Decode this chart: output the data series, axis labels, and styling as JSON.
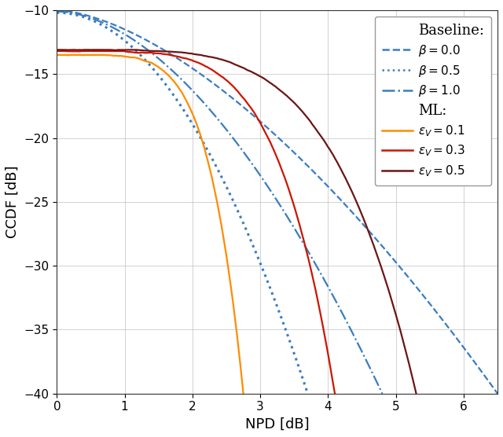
{
  "title": "",
  "xlabel": "NPD [dB]",
  "ylabel": "CCDF [dB]",
  "xlim": [
    0,
    6.5
  ],
  "ylim": [
    -40,
    -10
  ],
  "yticks": [
    -40,
    -35,
    -30,
    -25,
    -20,
    -15,
    -10
  ],
  "xticks": [
    0,
    1,
    2,
    3,
    4,
    5,
    6
  ],
  "background_color": "#ffffff",
  "grid_color": "#b0b0b0",
  "curves": [
    {
      "key": "baseline_beta0",
      "color": "#3a7dbf",
      "linestyle": "--",
      "linewidth": 1.6,
      "y0": -10.0,
      "x_end": 6.5,
      "shape": "baseline",
      "k": 1.6,
      "x_shift": 0.0
    },
    {
      "key": "baseline_beta05",
      "color": "#3a7dbf",
      "linestyle": ":",
      "linewidth": 2.2,
      "y0": -10.2,
      "x_end": 3.7,
      "shape": "baseline",
      "k": 2.0,
      "x_shift": 0.0
    },
    {
      "key": "baseline_beta10",
      "color": "#3a7dbf",
      "linestyle": "-.",
      "linewidth": 1.6,
      "y0": -10.1,
      "x_end": 4.8,
      "shape": "baseline",
      "k": 1.8,
      "x_shift": 0.0
    },
    {
      "key": "ml_eps01",
      "color": "#ff8c00",
      "linestyle": "-",
      "linewidth": 1.6,
      "y0": -13.5,
      "x_end": 2.75,
      "shape": "ml",
      "k": 5.5,
      "x_shift": 0.0
    },
    {
      "key": "ml_eps03",
      "color": "#cc1500",
      "linestyle": "-",
      "linewidth": 1.6,
      "y0": -13.2,
      "x_end": 4.1,
      "shape": "ml",
      "k": 5.0,
      "x_shift": 0.0
    },
    {
      "key": "ml_eps05",
      "color": "#6b1515",
      "linestyle": "-",
      "linewidth": 1.6,
      "y0": -13.1,
      "x_end": 5.3,
      "shape": "ml",
      "k": 4.5,
      "x_shift": 0.0
    }
  ],
  "legend": {
    "baseline_header": "Baseline:",
    "ml_header": "ML:",
    "baseline_entries": [
      {
        "label": "$\\beta = 0.0$",
        "linestyle": "--"
      },
      {
        "label": "$\\beta = 0.5$",
        "linestyle": ":"
      },
      {
        "label": "$\\beta = 1.0$",
        "linestyle": "-."
      }
    ],
    "ml_entries": [
      {
        "label": "$\\epsilon_V = 0.1$",
        "color": "#ff8c00"
      },
      {
        "label": "$\\epsilon_V = 0.3$",
        "color": "#cc1500"
      },
      {
        "label": "$\\epsilon_V = 0.5$",
        "color": "#6b1515"
      }
    ],
    "baseline_color": "#3a7dbf"
  }
}
